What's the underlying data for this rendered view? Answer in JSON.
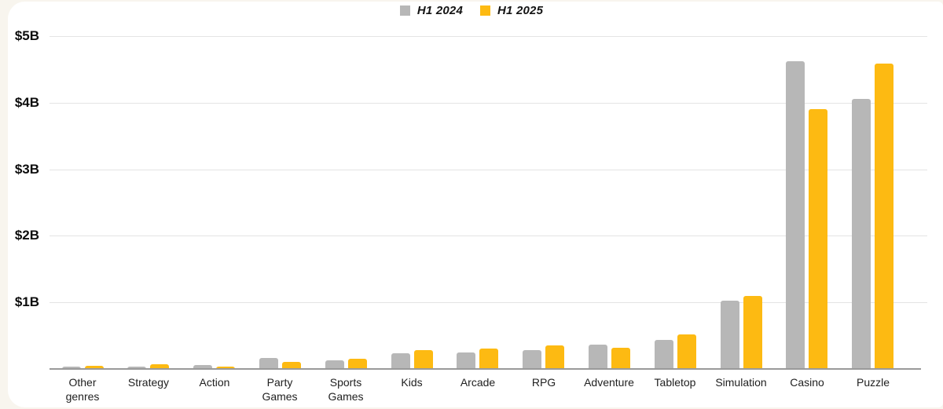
{
  "page": {
    "background_color": "#f8f5ee",
    "card_color": "#ffffff"
  },
  "chart_data": {
    "type": "bar",
    "title": "",
    "categories": [
      "Other genres",
      "Strategy",
      "Action",
      "Party Games",
      "Sports Games",
      "Kids",
      "Arcade",
      "RPG",
      "Adventure",
      "Tabletop",
      "Simulation",
      "Casino",
      "Puzzle"
    ],
    "series": [
      {
        "name": "H1 2024",
        "color": "#b7b7b7",
        "values": [
          0.03,
          0.03,
          0.06,
          0.17,
          0.13,
          0.23,
          0.25,
          0.28,
          0.37,
          0.44,
          1.03,
          4.62,
          4.06
        ]
      },
      {
        "name": "H1 2025",
        "color": "#fdba12",
        "values": [
          0.05,
          0.07,
          0.04,
          0.11,
          0.15,
          0.28,
          0.31,
          0.35,
          0.32,
          0.52,
          1.1,
          3.9,
          4.59
        ]
      }
    ],
    "xlabel": "",
    "ylabel": "",
    "yticks": [
      1,
      2,
      3,
      4,
      5
    ],
    "ytick_labels": [
      "$1B",
      "$2B",
      "$3B",
      "$4B",
      "$5B"
    ],
    "ylim": [
      0,
      5.3
    ],
    "grid": true,
    "legend_position": "top-center",
    "gridline_color": "#e4e4e4",
    "axis_line_color": "#9a9a9a"
  }
}
